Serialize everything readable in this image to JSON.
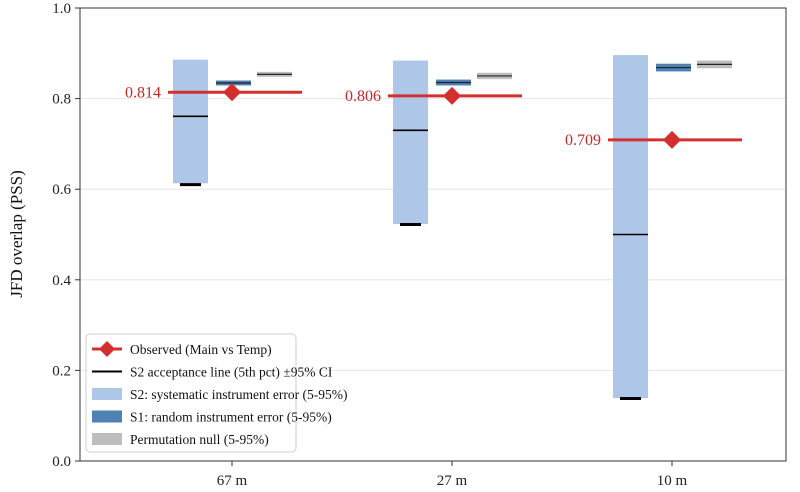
{
  "chart_data": {
    "type": "bar",
    "title": "",
    "xlabel": "",
    "ylabel": "JFD overlap (PSS)",
    "ylim": [
      0.0,
      1.0
    ],
    "yticks": [
      0.0,
      0.2,
      0.4,
      0.6,
      0.8,
      1.0
    ],
    "ytick_labels": [
      "0.0",
      "0.2",
      "0.4",
      "0.6",
      "0.8",
      "1.0"
    ],
    "grid": "horizontal",
    "legend_position": "bottom-left",
    "categories": [
      "67 m",
      "27 m",
      "10 m"
    ],
    "series": [
      {
        "name": "Observed (Main vs Temp)",
        "color": "#d32f2f",
        "values": [
          0.814,
          0.806,
          0.709
        ],
        "labels": [
          "0.814",
          "0.806",
          "0.709"
        ]
      },
      {
        "name": "S2 acceptance line (5th pct) ±95% CI",
        "color": "#000000",
        "values": [
          0.61,
          0.522,
          0.138
        ]
      },
      {
        "name": "S2: systematic instrument error (5-95%)",
        "color": "#aec7e8",
        "low": [
          0.613,
          0.523,
          0.139
        ],
        "high": [
          0.886,
          0.884,
          0.896
        ],
        "median": [
          0.761,
          0.73,
          0.5
        ]
      },
      {
        "name": "S1: random instrument error (5-95%)",
        "color": "#4f81b4",
        "low": [
          0.829,
          0.829,
          0.86
        ],
        "high": [
          0.84,
          0.842,
          0.877
        ]
      },
      {
        "name": "Permutation null (5-95%)",
        "color": "#bdbdbd",
        "low": [
          0.848,
          0.843,
          0.867
        ],
        "high": [
          0.859,
          0.857,
          0.884
        ]
      }
    ]
  }
}
